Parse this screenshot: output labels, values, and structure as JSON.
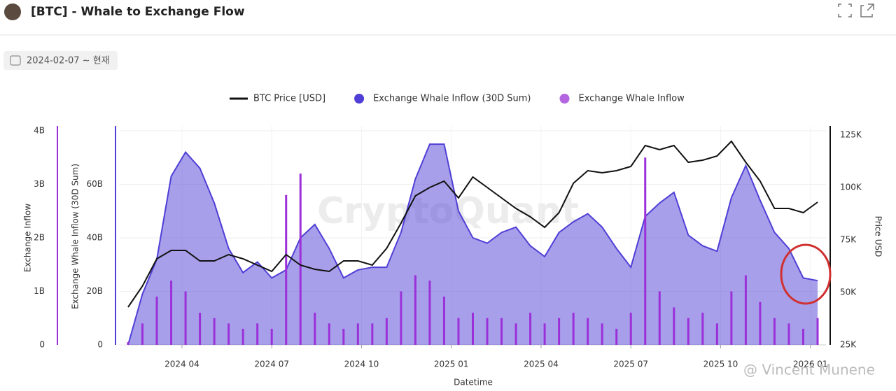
{
  "header": {
    "title": "[BTC] - Whale to Exchange Flow"
  },
  "date_range": "2024-02-07 ~ 현재",
  "watermark": "CryptoQuant",
  "attribution": "@ Vincent Munene",
  "chart_data": {
    "type": "combo",
    "x_label": "Datetime",
    "xlim": [
      2024.1,
      2026.02
    ],
    "xticks": [
      {
        "value": 2024.25,
        "label": "2024 04"
      },
      {
        "value": 2024.5,
        "label": "2024 07"
      },
      {
        "value": 2024.75,
        "label": "2024 10"
      },
      {
        "value": 2025,
        "label": "2025 01"
      },
      {
        "value": 2025.25,
        "label": "2025 04"
      },
      {
        "value": 2025.5,
        "label": "2025 07"
      },
      {
        "value": 2025.75,
        "label": "2025 10"
      },
      {
        "value": 2026,
        "label": "2026 01"
      }
    ],
    "x": [
      2024.1,
      2024.14,
      2024.18,
      2024.22,
      2024.26,
      2024.3,
      2024.34,
      2024.38,
      2024.42,
      2024.46,
      2024.5,
      2024.54,
      2024.58,
      2024.62,
      2024.66,
      2024.7,
      2024.74,
      2024.78,
      2024.82,
      2024.86,
      2024.9,
      2024.94,
      2024.98,
      2025.02,
      2025.06,
      2025.1,
      2025.14,
      2025.18,
      2025.22,
      2025.26,
      2025.3,
      2025.34,
      2025.38,
      2025.42,
      2025.46,
      2025.5,
      2025.54,
      2025.58,
      2025.62,
      2025.66,
      2025.7,
      2025.74,
      2025.78,
      2025.82,
      2025.86,
      2025.9,
      2025.94,
      2025.98,
      2026.02
    ],
    "y_label": "Exchange Inflow",
    "ylim": [
      0,
      4
    ],
    "yticks": [
      0,
      {
        "value": 1,
        "label": "1B"
      },
      {
        "value": 2,
        "label": "2B"
      },
      {
        "value": 3,
        "label": "3B"
      },
      {
        "value": 4,
        "label": "4B"
      }
    ],
    "y2_label": "Exchange Whale Inflow (30D Sum)",
    "y2lim": [
      0,
      80
    ],
    "y2ticks": [
      0,
      {
        "value": 20,
        "label": "20B"
      },
      {
        "value": 40,
        "label": "40B"
      },
      {
        "value": 60,
        "label": "60B"
      }
    ],
    "y3_label": "Price USD",
    "y3lim": [
      25,
      127
    ],
    "y3ticks": [
      {
        "value": 25,
        "label": "25K"
      },
      {
        "value": 50,
        "label": "50K"
      },
      {
        "value": 75,
        "label": "75K"
      },
      {
        "value": 100,
        "label": "100K"
      },
      {
        "value": 125,
        "label": "125K"
      }
    ],
    "grid": true,
    "series": [
      {
        "name": "BTC Price [USD]",
        "type": "line",
        "axis": "y3",
        "color": "#111111",
        "values": [
          43,
          53,
          66,
          70,
          70,
          65,
          65,
          68,
          66,
          63,
          60,
          68,
          63,
          61,
          60,
          65,
          65,
          63,
          71,
          83,
          96,
          100,
          103,
          95,
          105,
          100,
          95,
          90,
          86,
          81,
          88,
          102,
          108,
          107,
          108,
          110,
          120,
          118,
          120,
          112,
          113,
          115,
          122,
          112,
          103,
          90,
          90,
          88,
          93
        ]
      },
      {
        "name": "Exchange Whale Inflow (30D Sum)",
        "type": "area",
        "axis": "y2",
        "color": "#4f3fd6",
        "values": [
          0,
          19,
          32,
          63,
          72,
          66,
          53,
          36,
          27,
          31,
          25,
          28,
          40,
          45,
          36,
          25,
          28,
          29,
          29,
          42,
          62,
          75,
          75,
          50,
          40,
          38,
          42,
          44,
          37,
          33,
          42,
          46,
          49,
          44,
          36,
          29,
          48,
          53,
          57,
          41,
          37,
          35,
          55,
          67,
          54,
          42,
          36,
          25,
          24
        ]
      },
      {
        "name": "Exchange Whale Inflow",
        "type": "bar",
        "axis": "y",
        "color": "#9b30d9",
        "values": [
          0.05,
          0.4,
          0.9,
          1.2,
          1.0,
          0.6,
          0.5,
          0.4,
          0.3,
          0.4,
          0.3,
          2.8,
          3.2,
          0.6,
          0.4,
          0.3,
          0.4,
          0.4,
          0.5,
          1.0,
          1.3,
          1.2,
          0.9,
          0.5,
          0.6,
          0.5,
          0.5,
          0.4,
          0.6,
          0.4,
          0.5,
          0.6,
          0.5,
          0.4,
          0.3,
          0.6,
          3.5,
          1.0,
          0.7,
          0.5,
          0.6,
          0.4,
          1.0,
          1.3,
          0.8,
          0.5,
          0.4,
          0.3,
          0.5
        ]
      }
    ]
  }
}
